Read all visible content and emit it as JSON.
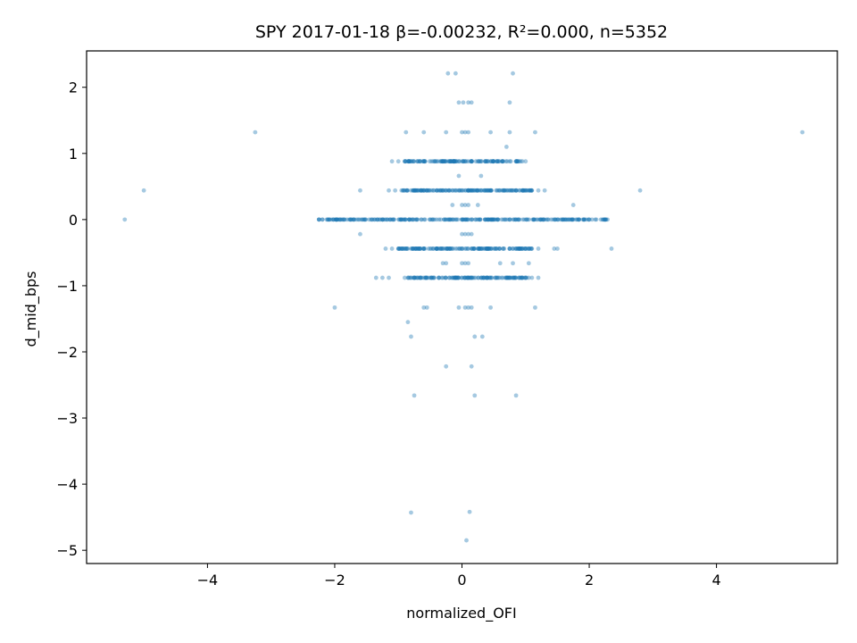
{
  "chart_data": {
    "type": "scatter",
    "title": "SPY 2017-01-18  β=-0.00232, R²=0.000, n=5352",
    "xlabel": "normalized_OFI",
    "ylabel": "d_mid_bps",
    "xlim": [
      -5.9,
      5.9
    ],
    "ylim": [
      -5.2,
      2.55
    ],
    "xticks": [
      -4,
      -2,
      0,
      2,
      4
    ],
    "xtick_labels": [
      "−4",
      "−2",
      "0",
      "2",
      "4"
    ],
    "yticks": [
      -5,
      -4,
      -3,
      -2,
      -1,
      0,
      1,
      2
    ],
    "ytick_labels": [
      "−5",
      "−4",
      "−3",
      "−2",
      "−1",
      "0",
      "1",
      "2"
    ],
    "grid": false,
    "legend": "none",
    "point_color": "#1f77b4",
    "point_alpha": 0.4,
    "series": [
      {
        "points": [
          [
            -5.3,
            0.0
          ],
          [
            -5.0,
            0.44
          ],
          [
            -3.25,
            1.32
          ],
          [
            5.35,
            1.32
          ],
          [
            2.8,
            0.44
          ],
          [
            2.35,
            -0.44
          ],
          [
            -2.0,
            -1.33
          ],
          [
            1.15,
            -1.33
          ],
          [
            -0.8,
            -4.43
          ],
          [
            0.12,
            -4.42
          ],
          [
            0.07,
            -4.85
          ],
          [
            -0.75,
            -2.66
          ],
          [
            0.2,
            -2.66
          ],
          [
            0.85,
            -2.66
          ],
          [
            -0.25,
            -2.22
          ],
          [
            0.15,
            -2.22
          ],
          [
            -0.85,
            -1.55
          ],
          [
            -0.8,
            -1.77
          ],
          [
            0.2,
            -1.77
          ],
          [
            0.32,
            -1.77
          ],
          [
            -0.22,
            2.21
          ],
          [
            -0.1,
            2.21
          ],
          [
            0.8,
            2.21
          ],
          [
            -0.88,
            1.32
          ],
          [
            -0.6,
            1.32
          ],
          [
            -0.25,
            1.32
          ],
          [
            0.45,
            1.32
          ],
          [
            0.75,
            1.32
          ],
          [
            1.15,
            1.32
          ],
          [
            -0.05,
            1.77
          ],
          [
            0.02,
            1.77
          ],
          [
            0.1,
            1.77
          ],
          [
            0.15,
            1.77
          ],
          [
            0.75,
            1.77
          ],
          [
            -1.6,
            0.44
          ],
          [
            1.75,
            0.22
          ],
          [
            0.7,
            1.1
          ],
          [
            -0.05,
            0.66
          ],
          [
            0.3,
            0.66
          ],
          [
            -1.6,
            -0.22
          ],
          [
            -1.35,
            -0.88
          ],
          [
            -1.25,
            -0.88
          ],
          [
            -0.6,
            -1.33
          ],
          [
            -0.55,
            -1.33
          ],
          [
            0.45,
            -1.33
          ],
          [
            0.05,
            -1.33
          ],
          [
            -0.05,
            -1.33
          ],
          [
            0.1,
            -1.33
          ],
          [
            0.15,
            -1.33
          ],
          [
            -0.3,
            -0.66
          ],
          [
            -0.25,
            -0.66
          ],
          [
            0.0,
            -0.66
          ],
          [
            0.05,
            -0.66
          ],
          [
            0.1,
            -0.66
          ],
          [
            0.6,
            -0.66
          ],
          [
            0.8,
            -0.66
          ],
          [
            1.05,
            -0.66
          ],
          [
            -1.1,
            0.88
          ],
          [
            -1.0,
            0.88
          ],
          [
            -0.9,
            0.88
          ],
          [
            -0.85,
            0.88
          ],
          [
            -0.8,
            0.88
          ],
          [
            -0.75,
            0.88
          ],
          [
            -0.7,
            0.88
          ],
          [
            -0.3,
            0.88
          ],
          [
            -0.2,
            0.88
          ],
          [
            -0.15,
            0.88
          ],
          [
            -0.1,
            0.88
          ],
          [
            0.0,
            0.88
          ],
          [
            0.05,
            0.88
          ],
          [
            0.1,
            0.88
          ],
          [
            0.15,
            0.88
          ],
          [
            0.45,
            0.88
          ],
          [
            0.65,
            0.88
          ],
          [
            0.75,
            0.88
          ],
          [
            0.85,
            0.88
          ],
          [
            0.9,
            0.88
          ],
          [
            0.95,
            0.88
          ],
          [
            1.0,
            0.88
          ],
          [
            -1.15,
            0.44
          ],
          [
            -1.05,
            0.44
          ],
          [
            -0.95,
            0.44
          ],
          [
            -0.9,
            0.44
          ],
          [
            -0.85,
            0.44
          ],
          [
            -0.8,
            0.44
          ],
          [
            -0.75,
            0.44
          ],
          [
            -0.7,
            0.44
          ],
          [
            -0.65,
            0.44
          ],
          [
            -0.6,
            0.44
          ],
          [
            -0.45,
            0.44
          ],
          [
            -0.4,
            0.44
          ],
          [
            -0.3,
            0.44
          ],
          [
            -0.25,
            0.44
          ],
          [
            -0.2,
            0.44
          ],
          [
            -0.15,
            0.44
          ],
          [
            -0.1,
            0.44
          ],
          [
            -0.05,
            0.44
          ],
          [
            0.0,
            0.44
          ],
          [
            0.05,
            0.44
          ],
          [
            0.1,
            0.44
          ],
          [
            0.15,
            0.44
          ],
          [
            0.2,
            0.44
          ],
          [
            0.25,
            0.44
          ],
          [
            0.3,
            0.44
          ],
          [
            0.35,
            0.44
          ],
          [
            0.45,
            0.44
          ],
          [
            0.55,
            0.44
          ],
          [
            0.7,
            0.44
          ],
          [
            0.75,
            0.44
          ],
          [
            0.8,
            0.44
          ],
          [
            0.85,
            0.44
          ],
          [
            0.9,
            0.44
          ],
          [
            0.95,
            0.44
          ],
          [
            1.0,
            0.44
          ],
          [
            1.05,
            0.44
          ],
          [
            1.1,
            0.44
          ],
          [
            1.2,
            0.44
          ],
          [
            1.3,
            0.44
          ],
          [
            -1.2,
            -0.44
          ],
          [
            -1.1,
            -0.44
          ],
          [
            -1.0,
            -0.44
          ],
          [
            -0.9,
            -0.44
          ],
          [
            -0.85,
            -0.44
          ],
          [
            -0.8,
            -0.44
          ],
          [
            -0.75,
            -0.44
          ],
          [
            -0.7,
            -0.44
          ],
          [
            -0.6,
            -0.44
          ],
          [
            -0.5,
            -0.44
          ],
          [
            -0.4,
            -0.44
          ],
          [
            -0.35,
            -0.44
          ],
          [
            -0.3,
            -0.44
          ],
          [
            -0.2,
            -0.44
          ],
          [
            -0.1,
            -0.44
          ],
          [
            0.0,
            -0.44
          ],
          [
            0.05,
            -0.44
          ],
          [
            0.1,
            -0.44
          ],
          [
            0.15,
            -0.44
          ],
          [
            0.2,
            -0.44
          ],
          [
            0.3,
            -0.44
          ],
          [
            0.4,
            -0.44
          ],
          [
            0.5,
            -0.44
          ],
          [
            0.65,
            -0.44
          ],
          [
            0.75,
            -0.44
          ],
          [
            0.8,
            -0.44
          ],
          [
            0.85,
            -0.44
          ],
          [
            0.9,
            -0.44
          ],
          [
            0.95,
            -0.44
          ],
          [
            1.0,
            -0.44
          ],
          [
            1.05,
            -0.44
          ],
          [
            1.1,
            -0.44
          ],
          [
            1.2,
            -0.44
          ],
          [
            1.45,
            -0.44
          ],
          [
            1.5,
            -0.44
          ],
          [
            -1.15,
            -0.88
          ],
          [
            -0.9,
            -0.88
          ],
          [
            -0.85,
            -0.88
          ],
          [
            -0.8,
            -0.88
          ],
          [
            -0.75,
            -0.88
          ],
          [
            -0.7,
            -0.88
          ],
          [
            -0.3,
            -0.88
          ],
          [
            -0.2,
            -0.88
          ],
          [
            -0.1,
            -0.88
          ],
          [
            -0.05,
            -0.88
          ],
          [
            0.0,
            -0.88
          ],
          [
            0.05,
            -0.88
          ],
          [
            0.1,
            -0.88
          ],
          [
            0.15,
            -0.88
          ],
          [
            0.3,
            -0.88
          ],
          [
            0.4,
            -0.88
          ],
          [
            0.55,
            -0.88
          ],
          [
            0.75,
            -0.88
          ],
          [
            0.8,
            -0.88
          ],
          [
            0.85,
            -0.88
          ],
          [
            0.9,
            -0.88
          ],
          [
            0.95,
            -0.88
          ],
          [
            1.0,
            -0.88
          ],
          [
            1.05,
            -0.88
          ],
          [
            1.1,
            -0.88
          ],
          [
            1.2,
            -0.88
          ],
          [
            0.0,
            -0.22
          ],
          [
            0.05,
            -0.22
          ],
          [
            0.1,
            -0.22
          ],
          [
            0.15,
            -0.22
          ],
          [
            0.0,
            0.22
          ],
          [
            0.05,
            0.22
          ],
          [
            0.1,
            0.22
          ],
          [
            -0.15,
            0.22
          ],
          [
            0.25,
            0.22
          ],
          [
            0.0,
            1.32
          ],
          [
            0.05,
            1.32
          ],
          [
            0.1,
            1.32
          ]
        ],
        "dense_bands": [
          {
            "y": 0.0,
            "x_from": -2.25,
            "x_to": 2.3
          },
          {
            "y": 0.44,
            "x_from": -0.95,
            "x_to": 1.1
          },
          {
            "y": -0.44,
            "x_from": -1.0,
            "x_to": 1.1
          },
          {
            "y": 0.88,
            "x_from": -0.9,
            "x_to": 1.0
          },
          {
            "y": -0.88,
            "x_from": -0.85,
            "x_to": 1.1
          }
        ]
      }
    ]
  }
}
